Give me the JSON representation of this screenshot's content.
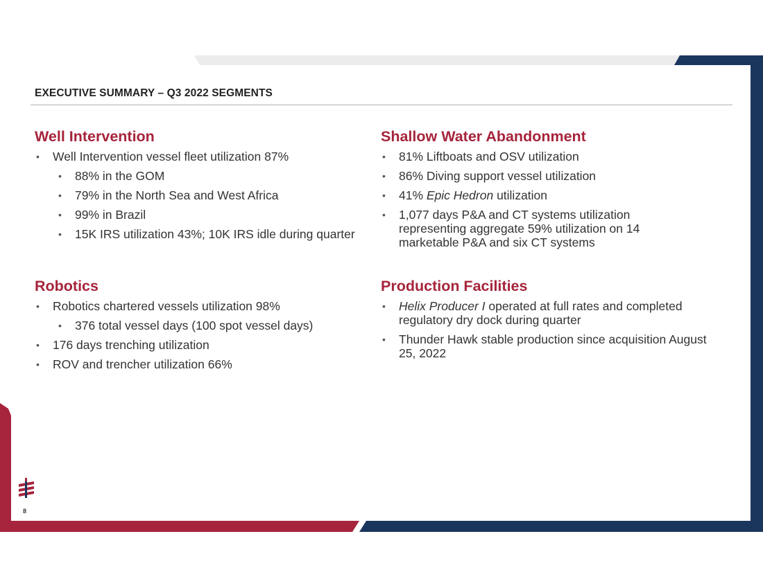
{
  "slide": {
    "title": "EXECUTIVE SUMMARY – Q3 2022 SEGMENTS",
    "page_number": "8"
  },
  "colors": {
    "accent_red": "#a6243c",
    "navy": "#1b365d",
    "light_gray_band": "#ececec"
  },
  "well_intervention": {
    "heading": "Well Intervention",
    "items": [
      "Well Intervention vessel fleet utilization 87%",
      "88% in the GOM",
      "79% in the North Sea and West Africa",
      "99% in Brazil",
      "15K IRS utilization 43%; 10K IRS idle during quarter"
    ]
  },
  "robotics": {
    "heading": "Robotics",
    "items": [
      "Robotics chartered vessels utilization 98%",
      "376 total vessel days (100 spot vessel days)",
      "176 days trenching utilization",
      "ROV and trencher utilization 66%"
    ]
  },
  "shallow_water": {
    "heading": "Shallow Water Abandonment",
    "items": [
      "81% Liftboats and OSV utilization",
      "86% Diving support vessel utilization",
      {
        "prefix": "41% ",
        "italic": "Epic Hedron",
        "suffix": " utilization"
      },
      "1,077 days P&A and CT systems utilization representing aggregate 59% utilization on 14 marketable P&A and six CT systems"
    ]
  },
  "production": {
    "heading": "Production Facilities",
    "items": [
      {
        "italic": "Helix Producer I",
        "suffix": " operated at full rates and completed regulatory dry dock during quarter"
      },
      "Thunder Hawk stable production since acquisition August 25, 2022"
    ]
  },
  "icons": {
    "logo": "helix-logo-icon"
  }
}
